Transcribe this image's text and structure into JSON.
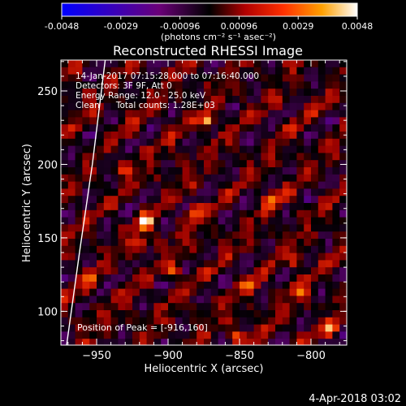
{
  "chart_data": {
    "type": "heatmap",
    "title": "Reconstructed RHESSI Image",
    "xlabel": "Heliocentric X (arcsec)",
    "ylabel": "Heliocentric Y (arcsec)",
    "xlim": [
      -975,
      -775
    ],
    "ylim": [
      77,
      271
    ],
    "x_ticks": [
      -950,
      -900,
      -850,
      -800
    ],
    "y_ticks": [
      100,
      150,
      200,
      250
    ],
    "colorbar": {
      "min": -0.0048,
      "max": 0.0048,
      "ticks": [
        "-0.0048",
        "-0.0029",
        "-0.00096",
        "0.00096",
        "0.0029",
        "0.0048"
      ],
      "unit_label": "(photons cm⁻² s⁻¹ asec⁻²)"
    },
    "annotations": [
      "14-Jan-2017 07:15:28.000 to 07:16:40.000",
      "Detectors: 3F 9F, Att 0",
      "Energy Range: 12.0 - 25.0 keV",
      "Clean      Total counts: 1.28E+03"
    ],
    "peak_label": "Position of Peak = [-916,160]",
    "peak": {
      "x": -916,
      "y": 160
    },
    "hotspots": [
      {
        "x": -916,
        "y": 160,
        "v": 1.0
      },
      {
        "x": -872,
        "y": 229,
        "v": 0.85
      },
      {
        "x": -920,
        "y": 146,
        "v": 0.55
      },
      {
        "x": -895,
        "y": 127,
        "v": 0.6
      },
      {
        "x": -882,
        "y": 168,
        "v": 0.65
      },
      {
        "x": -842,
        "y": 117,
        "v": 0.55
      },
      {
        "x": -810,
        "y": 133,
        "v": 0.45
      },
      {
        "x": -786,
        "y": 88,
        "v": 0.7
      },
      {
        "x": -808,
        "y": 112,
        "v": 0.5
      },
      {
        "x": -930,
        "y": 197,
        "v": 0.45
      },
      {
        "x": -852,
        "y": 84,
        "v": 0.5
      },
      {
        "x": -955,
        "y": 122,
        "v": 0.4
      },
      {
        "x": -828,
        "y": 176,
        "v": 0.45
      }
    ],
    "limb_curve": [
      {
        "x": -971,
        "y": 77
      },
      {
        "x": -962,
        "y": 140
      },
      {
        "x": -953,
        "y": 200
      },
      {
        "x": -944,
        "y": 271
      }
    ],
    "grid": false
  },
  "footer": {
    "date": "4-Apr-2018 03:02"
  },
  "colors": {
    "background": "#000000",
    "text": "#ffffff"
  }
}
